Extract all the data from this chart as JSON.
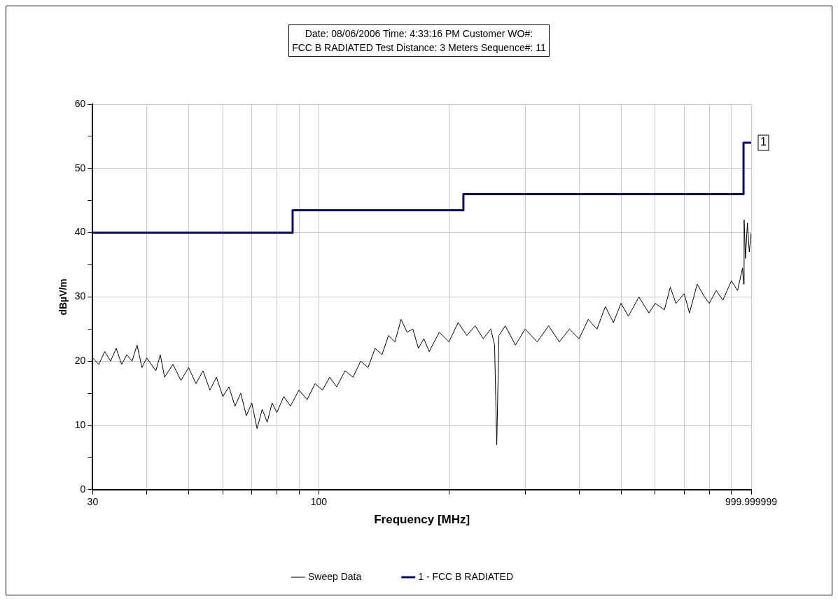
{
  "chart_data": {
    "type": "line",
    "title": "Date:  08/06/2006  Time: 4:33:16 PM  Customer WO#:",
    "subtitle": "FCC B RADIATED  Test Distance: 3 Meters  Sequence#: 11",
    "xlabel": "Frequency [MHz]",
    "ylabel": "dBµV/m",
    "log": "x",
    "grid": true,
    "legend": "bottom",
    "marker": "none",
    "xlim": [
      30,
      999.999999
    ],
    "ylim": [
      0,
      60
    ],
    "xticks": [
      30,
      {
        "value": 40,
        "label": null
      },
      {
        "value": 50,
        "label": null
      },
      {
        "value": 60,
        "label": null
      },
      {
        "value": 70,
        "label": null
      },
      {
        "value": 80,
        "label": null
      },
      {
        "value": 90,
        "label": null
      },
      100,
      {
        "value": 200,
        "label": null
      },
      {
        "value": 300,
        "label": null
      },
      {
        "value": 400,
        "label": null
      },
      {
        "value": 500,
        "label": null
      },
      {
        "value": 600,
        "label": null
      },
      {
        "value": 700,
        "label": null
      },
      {
        "value": 800,
        "label": null
      },
      {
        "value": 900,
        "label": null
      },
      999.999999
    ],
    "yticks": [
      0,
      {
        "value": 5,
        "label": null
      },
      10,
      {
        "value": 15,
        "label": null
      },
      20,
      {
        "value": 25,
        "label": null
      },
      30,
      {
        "value": 35,
        "label": null
      },
      40,
      {
        "value": 45,
        "label": null
      },
      50,
      {
        "value": 55,
        "label": null
      },
      60
    ],
    "series": [
      {
        "name": "Sweep Data",
        "color": "#000000",
        "type": "line",
        "x": [
          30,
          31,
          32,
          33,
          34,
          35,
          36,
          37,
          38,
          39,
          40,
          42,
          43,
          44,
          46,
          48,
          50,
          52,
          54,
          56,
          58,
          60,
          62,
          64,
          66,
          68,
          70,
          72,
          74,
          76,
          78,
          80,
          83,
          86,
          90,
          94,
          98,
          102,
          106,
          110,
          115,
          120,
          125,
          130,
          135,
          140,
          145,
          150,
          155,
          160,
          165,
          170,
          175,
          180,
          190,
          200,
          210,
          220,
          230,
          240,
          250,
          255,
          258,
          261,
          270,
          285,
          300,
          320,
          340,
          360,
          380,
          400,
          420,
          440,
          460,
          480,
          500,
          520,
          550,
          580,
          600,
          630,
          650,
          670,
          700,
          720,
          750,
          780,
          800,
          830,
          860,
          900,
          930,
          955,
          960,
          963,
          970,
          980,
          990,
          999.999999
        ],
        "values": [
          20.5,
          19.5,
          21.5,
          20,
          22,
          19.5,
          21,
          20,
          22.5,
          19,
          20.5,
          18.5,
          21,
          17.5,
          19.5,
          17,
          19,
          16.5,
          18.5,
          15.5,
          17.5,
          14.5,
          16,
          13,
          15,
          11.5,
          13.5,
          9.5,
          12.5,
          10.5,
          13.5,
          12,
          14.5,
          13,
          15.5,
          14,
          16.5,
          15.5,
          17.5,
          16,
          18.5,
          17.5,
          20,
          19,
          22,
          21,
          24,
          23,
          26.5,
          24.5,
          25,
          22,
          23.5,
          21.5,
          24.5,
          23,
          26,
          24,
          25.5,
          23.5,
          25,
          22.5,
          7,
          24,
          25.5,
          22.5,
          25,
          23,
          25.5,
          23,
          25,
          23.5,
          26.5,
          25,
          28.5,
          26,
          29,
          27,
          30,
          27.5,
          29,
          28,
          31.5,
          29,
          30.5,
          27.5,
          32,
          30,
          29,
          31,
          29.5,
          32.5,
          31,
          34.5,
          32,
          42,
          36,
          41.5,
          37,
          40
        ]
      },
      {
        "name": "1 - FCC B RADIATED",
        "color": "#0a0a6e",
        "type": "step",
        "x": [
          30,
          87,
          216,
          960,
          999.999999
        ],
        "values": [
          40,
          43.5,
          46,
          54,
          54
        ]
      }
    ],
    "annotations": [
      {
        "text": "1",
        "x": 999.999999,
        "y": 54
      }
    ]
  }
}
